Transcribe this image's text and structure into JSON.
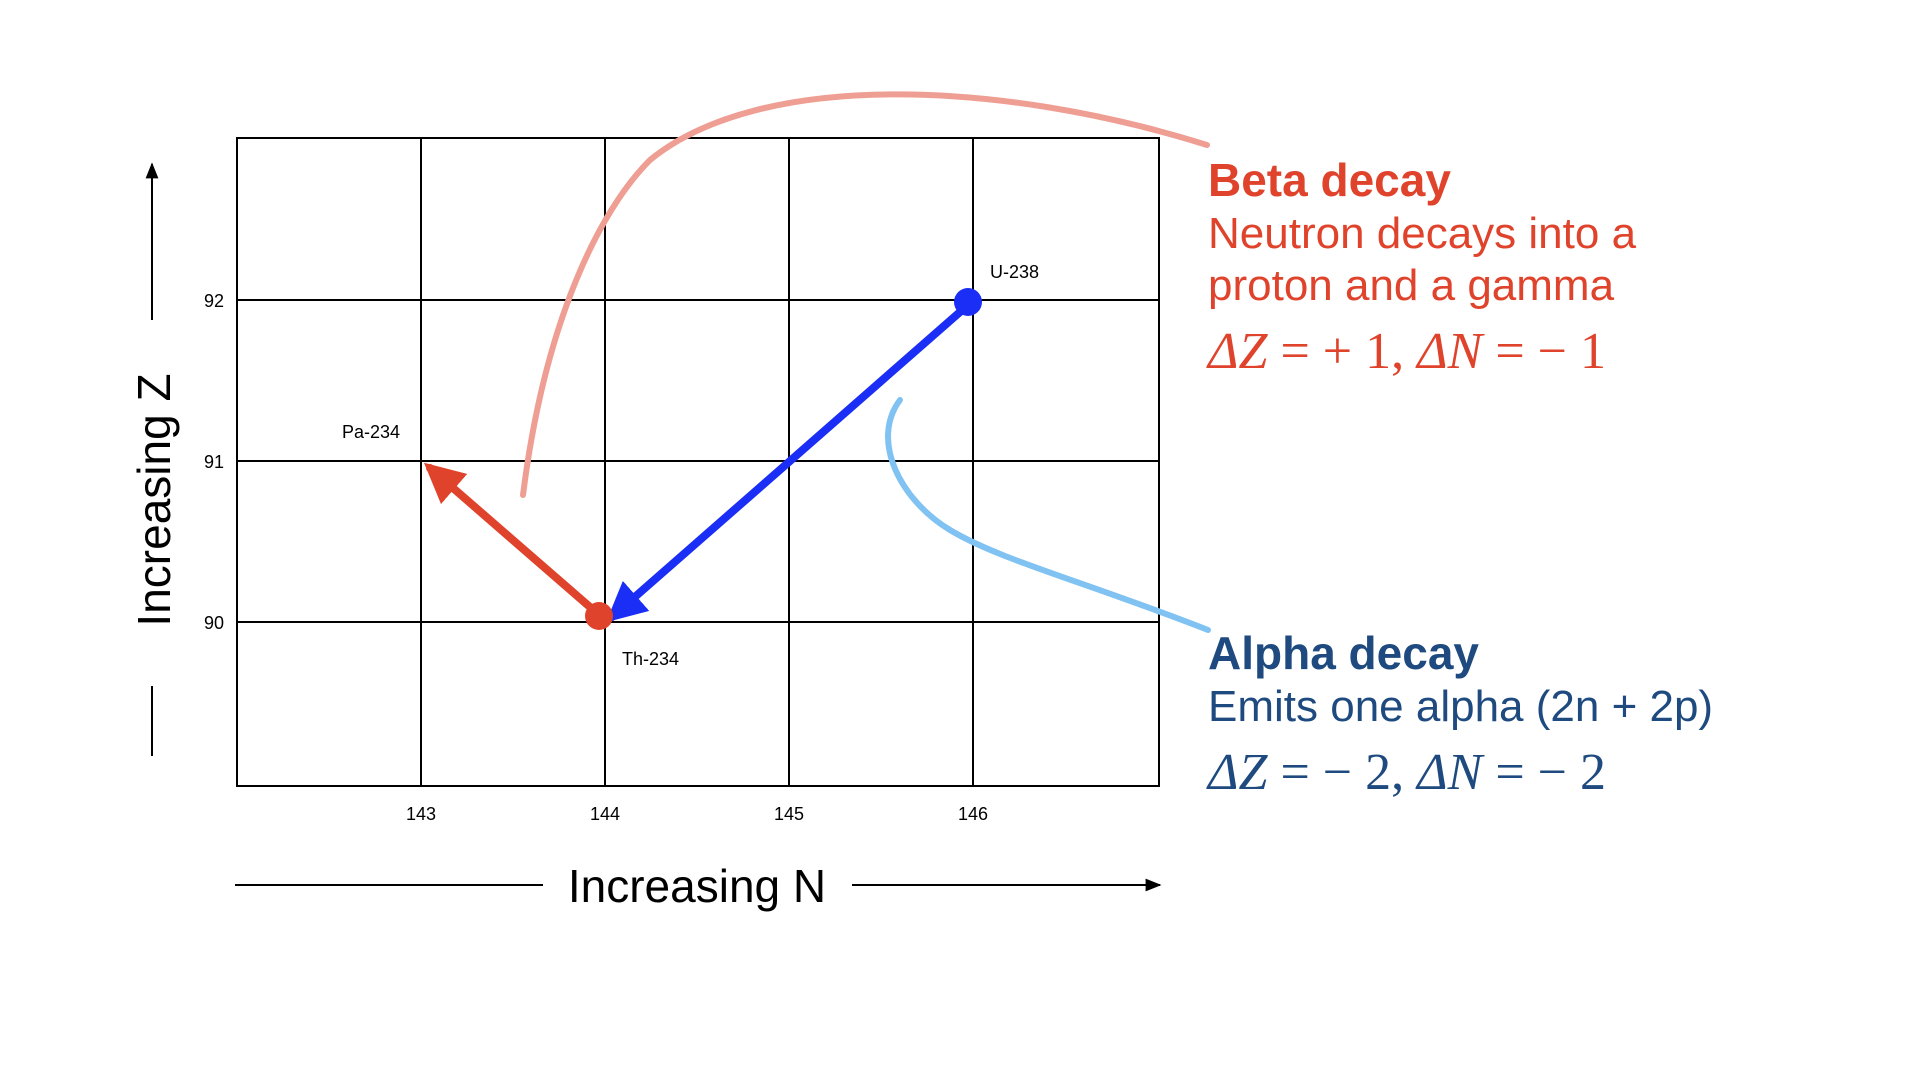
{
  "colors": {
    "beta": "#e0432b",
    "alpha": "#1e4a7f",
    "alpha_arrow": "#1a2ef5",
    "beta_curve": "#ef9e93",
    "alpha_curve": "#80c2f2"
  },
  "axes": {
    "x_label": "Increasing N",
    "y_label": "Increasing Z",
    "x_ticks": [
      "143",
      "144",
      "145",
      "146"
    ],
    "y_ticks": [
      "92",
      "91",
      "90"
    ]
  },
  "isotopes": [
    {
      "name": "U-238",
      "N": 146,
      "Z": 92
    },
    {
      "name": "Th-234",
      "N": 144,
      "Z": 90
    },
    {
      "name": "Pa-234",
      "N": 143,
      "Z": 91
    }
  ],
  "beta": {
    "title": "Beta decay",
    "line1": "Neutron decays into a",
    "line2": "proton and a gamma",
    "dz_label": "ΔZ",
    "dz_value": " = + 1, ",
    "dn_label": "ΔN",
    "dn_value": " = − 1"
  },
  "alpha": {
    "title": "Alpha decay",
    "line1": "Emits one alpha (2n + 2p)",
    "dz_label": "ΔZ",
    "dz_value": " = − 2, ",
    "dn_label": "ΔN",
    "dn_value": " = − 2"
  }
}
